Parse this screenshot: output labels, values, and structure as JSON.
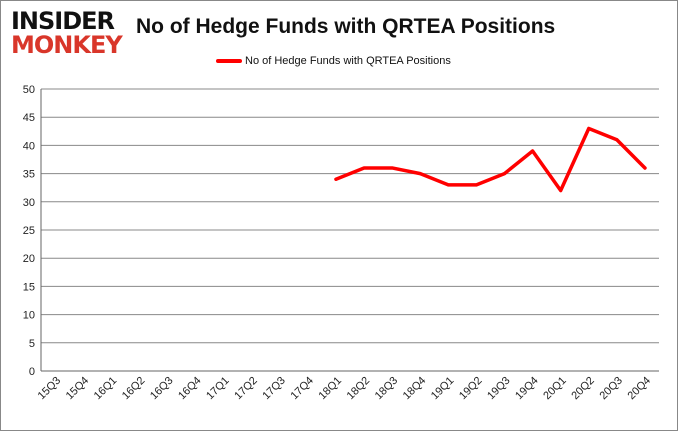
{
  "logo": {
    "line1": "INSIDER",
    "line2": "MONKEY"
  },
  "colors": {
    "series": "#ff0000",
    "grid": "#888888"
  },
  "chart_data": {
    "type": "line",
    "title": "No of Hedge Funds with QRTEA Positions",
    "legend": {
      "position": "top",
      "entries": [
        "No of Hedge Funds with QRTEA Positions"
      ]
    },
    "xlabel": "",
    "ylabel": "",
    "ylim": [
      0,
      50
    ],
    "yticks": [
      0,
      5,
      10,
      15,
      20,
      25,
      30,
      35,
      40,
      45,
      50
    ],
    "grid": true,
    "categories": [
      "15Q3",
      "15Q4",
      "16Q1",
      "16Q2",
      "16Q3",
      "16Q4",
      "17Q1",
      "17Q2",
      "17Q3",
      "17Q4",
      "18Q1",
      "18Q2",
      "18Q3",
      "18Q4",
      "19Q1",
      "19Q2",
      "19Q3",
      "19Q4",
      "20Q1",
      "20Q2",
      "20Q3",
      "20Q4"
    ],
    "series": [
      {
        "name": "No of Hedge Funds with QRTEA Positions",
        "values": [
          null,
          null,
          null,
          null,
          null,
          null,
          null,
          null,
          null,
          null,
          34,
          36,
          36,
          35,
          33,
          33,
          35,
          39,
          32,
          43,
          41,
          36
        ]
      }
    ]
  }
}
